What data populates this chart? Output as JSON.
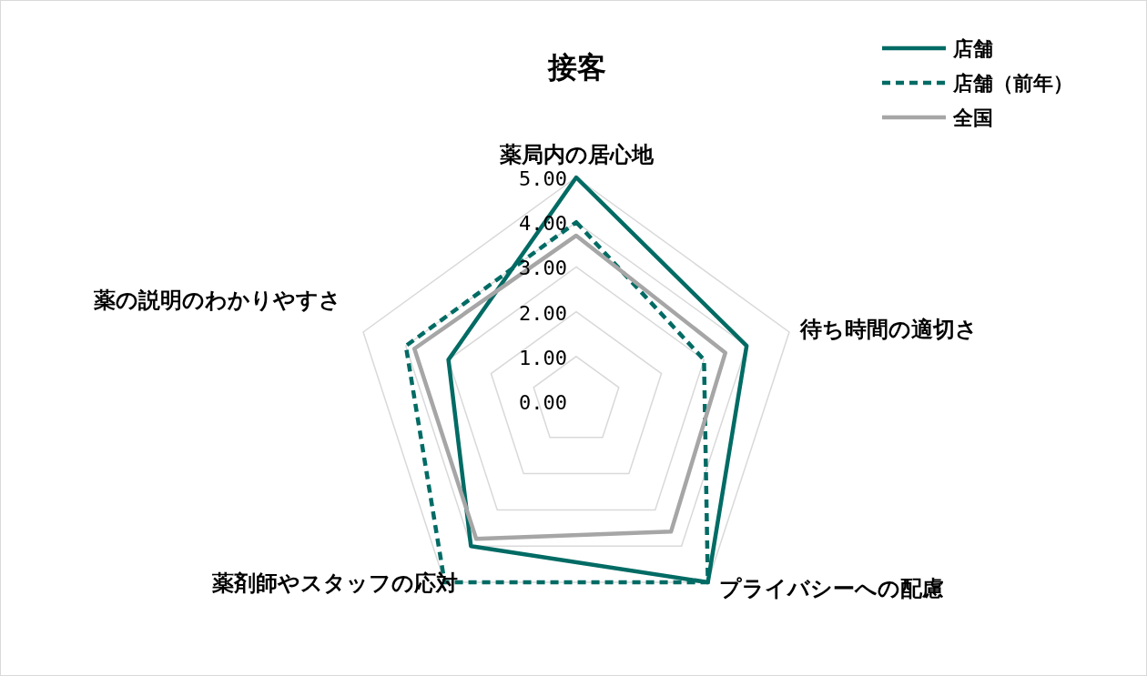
{
  "chart_data": {
    "type": "radar",
    "title": "接客",
    "categories": [
      "薬局内の居心地",
      "待ち時間の適切さ",
      "プライバシーへの配慮",
      "薬剤師やスタッフの応対",
      "薬の説明のわかりやすさ"
    ],
    "series": [
      {
        "name": "店舗",
        "color": "#006b64",
        "line_style": "solid",
        "values": [
          5,
          4,
          5,
          4,
          3
        ]
      },
      {
        "name": "店舗（前年）",
        "color": "#006b64",
        "line_style": "dashed",
        "values": [
          4,
          3,
          5,
          5,
          4
        ]
      },
      {
        "name": "全国",
        "color": "#a6a6a6",
        "line_style": "solid",
        "values": [
          3.7,
          3.5,
          3.6,
          3.8,
          3.8
        ]
      }
    ],
    "ylim": [
      0,
      5
    ],
    "yticks": [
      {
        "value": 0,
        "label": "0.00"
      },
      {
        "value": 1,
        "label": "1.00"
      },
      {
        "value": 2,
        "label": "2.00"
      },
      {
        "value": 3,
        "label": "3.00"
      },
      {
        "value": 4,
        "label": "4.00"
      },
      {
        "value": 5,
        "label": "5.00"
      }
    ],
    "grid": true,
    "legend": "top right"
  }
}
